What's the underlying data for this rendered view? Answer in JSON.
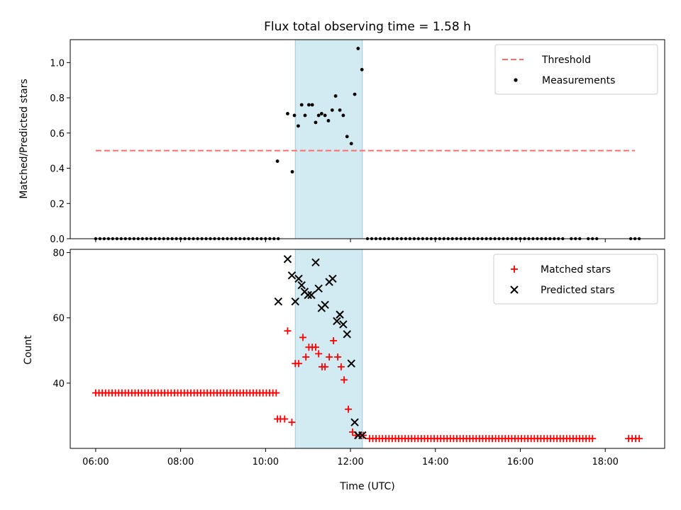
{
  "chart_data": {
    "type": "scatter",
    "title": "Flux total observing time = 1.58 h",
    "xlabel": "Time (UTC)",
    "x_ticks": [
      "06:00",
      "08:00",
      "10:00",
      "12:00",
      "14:00",
      "16:00",
      "18:00"
    ],
    "x_tick_hours": [
      6,
      8,
      10,
      12,
      14,
      16,
      18
    ],
    "xlim_hours": [
      5.4,
      19.4
    ],
    "shaded_interval_hours": [
      10.7,
      12.28
    ],
    "colors": {
      "shade": "#add8e6",
      "threshold": "#ff6b6b",
      "measurements": "#000000",
      "matched": "#ff0000",
      "predicted": "#000000"
    },
    "panels": [
      {
        "ylabel": "Matched/Predicted stars",
        "ylim": [
          0,
          1.13
        ],
        "y_ticks": [
          "0.0",
          "0.2",
          "0.4",
          "0.6",
          "0.8",
          "1.0"
        ],
        "y_tick_values": [
          0,
          0.2,
          0.4,
          0.6,
          0.8,
          1.0
        ],
        "legend": [
          "Threshold",
          "Measurements"
        ],
        "legend_position": "top-right",
        "threshold": {
          "value": 0.5,
          "x_range_hours": [
            6.0,
            18.7
          ]
        },
        "measurements_zero_range_hours": [
          6.0,
          18.8
        ],
        "measurements_zero_gaps_hours": [
          [
            10.3,
            10.45
          ],
          [
            12.3,
            12.35
          ],
          [
            17.0,
            17.1
          ],
          [
            17.4,
            17.55
          ],
          [
            17.8,
            18.5
          ]
        ],
        "measurements": [
          [
            10.28,
            0.44
          ],
          [
            10.52,
            0.71
          ],
          [
            10.63,
            0.38
          ],
          [
            10.68,
            0.7
          ],
          [
            10.77,
            0.64
          ],
          [
            10.85,
            0.76
          ],
          [
            10.93,
            0.7
          ],
          [
            11.02,
            0.76
          ],
          [
            11.1,
            0.76
          ],
          [
            11.18,
            0.66
          ],
          [
            11.25,
            0.7
          ],
          [
            11.32,
            0.71
          ],
          [
            11.4,
            0.7
          ],
          [
            11.48,
            0.67
          ],
          [
            11.57,
            0.73
          ],
          [
            11.65,
            0.81
          ],
          [
            11.75,
            0.73
          ],
          [
            11.83,
            0.7
          ],
          [
            11.92,
            0.58
          ],
          [
            12.02,
            0.54
          ],
          [
            12.1,
            0.82
          ],
          [
            12.18,
            1.08
          ],
          [
            12.27,
            0.96
          ]
        ]
      },
      {
        "ylabel": "Count",
        "ylim": [
          20,
          81
        ],
        "y_ticks": [
          "40",
          "60",
          "80"
        ],
        "y_tick_values": [
          40,
          60,
          80
        ],
        "legend": [
          "Matched stars",
          "Predicted stars"
        ],
        "legend_position": "top-right",
        "matched_runs": [
          {
            "value": 37,
            "from_hours": 6.0,
            "to_hours": 10.25,
            "n": 56
          },
          {
            "value": 23,
            "from_hours": 12.45,
            "to_hours": 17.7,
            "n": 70
          },
          {
            "value": 23,
            "from_hours": 18.55,
            "to_hours": 18.8,
            "n": 4
          }
        ],
        "matched": [
          [
            10.28,
            29
          ],
          [
            10.35,
            29
          ],
          [
            10.45,
            29
          ],
          [
            10.52,
            56
          ],
          [
            10.62,
            28
          ],
          [
            10.7,
            46
          ],
          [
            10.78,
            46
          ],
          [
            10.88,
            54
          ],
          [
            10.95,
            48
          ],
          [
            11.02,
            51
          ],
          [
            11.1,
            51
          ],
          [
            11.18,
            51
          ],
          [
            11.25,
            49
          ],
          [
            11.33,
            45
          ],
          [
            11.4,
            45
          ],
          [
            11.5,
            48
          ],
          [
            11.6,
            53
          ],
          [
            11.7,
            48
          ],
          [
            11.78,
            45
          ],
          [
            11.85,
            41
          ],
          [
            11.95,
            32
          ],
          [
            12.05,
            25
          ],
          [
            12.13,
            24
          ],
          [
            12.22,
            24
          ],
          [
            12.3,
            24
          ]
        ],
        "predicted": [
          [
            10.3,
            65
          ],
          [
            10.52,
            78
          ],
          [
            10.62,
            73
          ],
          [
            10.7,
            65
          ],
          [
            10.78,
            72
          ],
          [
            10.85,
            70
          ],
          [
            10.92,
            68
          ],
          [
            11.0,
            67
          ],
          [
            11.08,
            67
          ],
          [
            11.18,
            77
          ],
          [
            11.25,
            69
          ],
          [
            11.32,
            63
          ],
          [
            11.4,
            64
          ],
          [
            11.5,
            71
          ],
          [
            11.58,
            72
          ],
          [
            11.68,
            59
          ],
          [
            11.75,
            61
          ],
          [
            11.83,
            58
          ],
          [
            11.92,
            55
          ],
          [
            12.02,
            46
          ],
          [
            12.1,
            28
          ],
          [
            12.18,
            24
          ],
          [
            12.28,
            24
          ]
        ]
      }
    ]
  }
}
